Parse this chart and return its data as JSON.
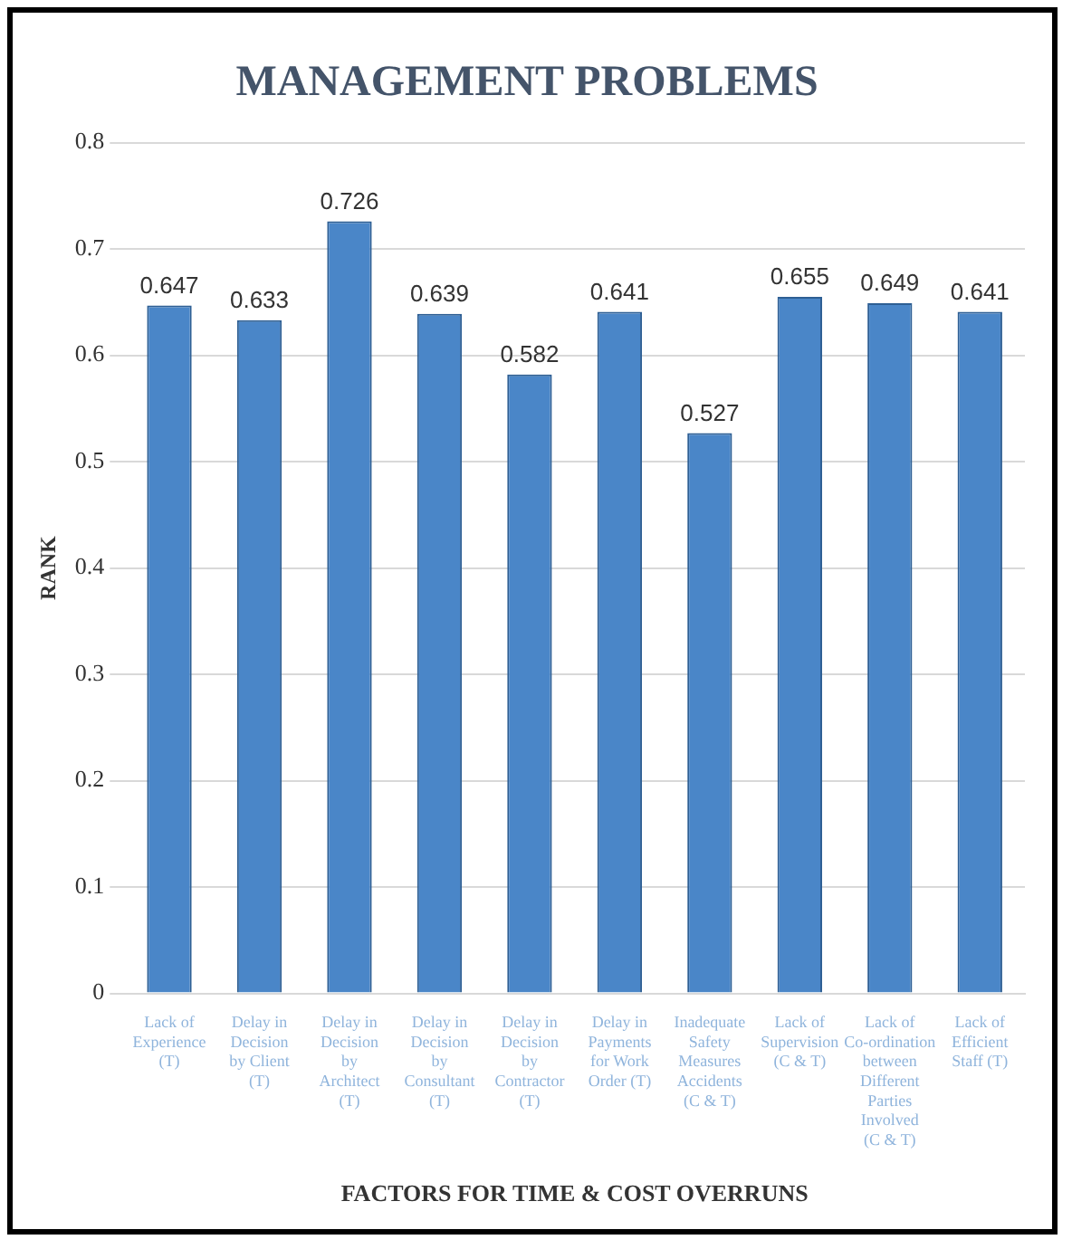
{
  "chart_data": {
    "type": "bar",
    "title": "MANAGEMENT PROBLEMS",
    "xlabel": "FACTORS FOR TIME & COST OVERRUNS",
    "ylabel": "RANK",
    "categories": [
      "Lack of Experience (T)",
      "Delay in Decision by Client (T)",
      "Delay in Decision by Architect (T)",
      "Delay in Decision by Consultant (T)",
      "Delay in Decision by Contractor (T)",
      "Delay in Payments for Work Order (T)",
      "Inadequate Safety Measures Accidents (C & T)",
      "Lack of Supervision (C & T)",
      "Lack of Co-ordination between Different Parties Involved (C & T)",
      "Lack of Efficient Staff (T)"
    ],
    "values": [
      0.647,
      0.633,
      0.726,
      0.639,
      0.582,
      0.641,
      0.527,
      0.655,
      0.649,
      0.641
    ],
    "color": "#4a86c8",
    "ylim": [
      0,
      0.8
    ],
    "yticks": [
      0,
      0.1,
      0.2,
      0.3,
      0.4,
      0.5,
      0.6,
      0.7,
      0.8
    ],
    "grid": "y",
    "data_labels": true
  }
}
